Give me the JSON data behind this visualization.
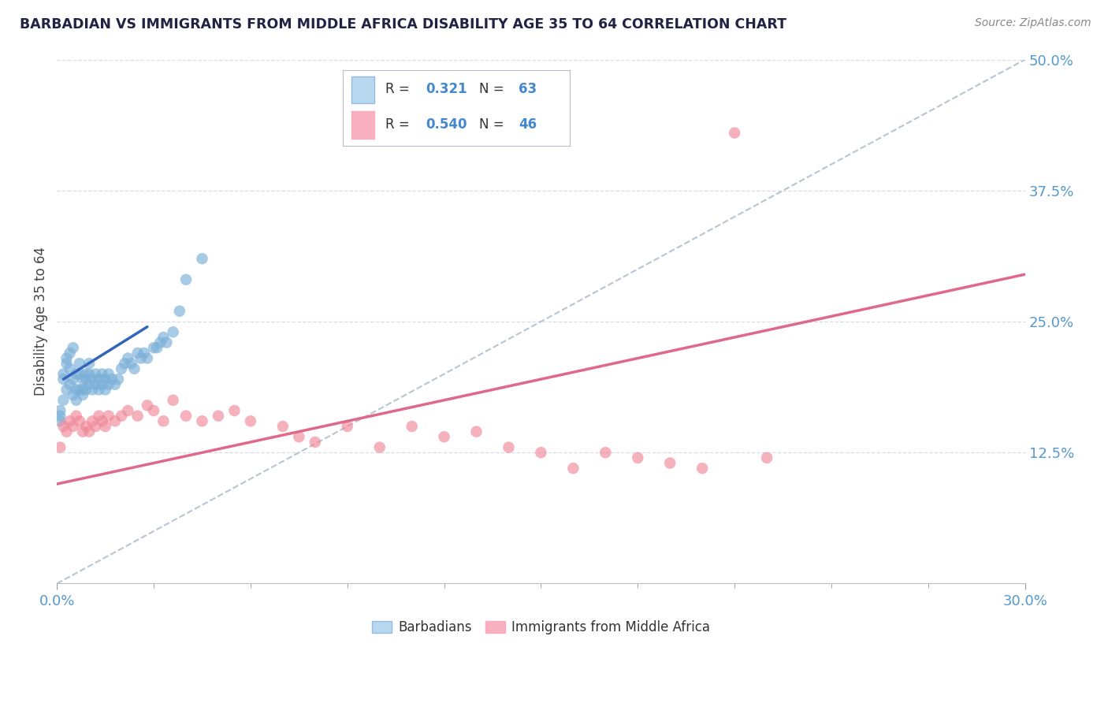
{
  "title": "BARBADIAN VS IMMIGRANTS FROM MIDDLE AFRICA DISABILITY AGE 35 TO 64 CORRELATION CHART",
  "source_text": "Source: ZipAtlas.com",
  "ylabel": "Disability Age 35 to 64",
  "xlim": [
    0.0,
    0.3
  ],
  "ylim": [
    0.0,
    0.5
  ],
  "yticks": [
    0.125,
    0.25,
    0.375,
    0.5
  ],
  "yticklabels": [
    "12.5%",
    "25.0%",
    "37.5%",
    "50.0%"
  ],
  "barbadian_R": 0.321,
  "barbadian_N": 63,
  "immigrant_R": 0.54,
  "immigrant_N": 46,
  "blue_dot_color": "#7ab0d8",
  "pink_dot_color": "#f08898",
  "legend_box_blue": "#b8d8f0",
  "legend_box_pink": "#f8b0c0",
  "tick_color": "#5599cc",
  "grid_color": "#d8dde8",
  "barb_x": [
    0.001,
    0.001,
    0.001,
    0.002,
    0.002,
    0.002,
    0.003,
    0.003,
    0.003,
    0.004,
    0.004,
    0.004,
    0.005,
    0.005,
    0.005,
    0.006,
    0.006,
    0.006,
    0.007,
    0.007,
    0.007,
    0.008,
    0.008,
    0.008,
    0.009,
    0.009,
    0.009,
    0.01,
    0.01,
    0.01,
    0.011,
    0.011,
    0.012,
    0.012,
    0.013,
    0.013,
    0.014,
    0.014,
    0.015,
    0.015,
    0.016,
    0.016,
    0.017,
    0.018,
    0.019,
    0.02,
    0.021,
    0.022,
    0.023,
    0.024,
    0.025,
    0.026,
    0.027,
    0.028,
    0.03,
    0.031,
    0.032,
    0.033,
    0.034,
    0.036,
    0.038,
    0.04,
    0.045
  ],
  "barb_y": [
    0.165,
    0.16,
    0.155,
    0.2,
    0.195,
    0.175,
    0.215,
    0.21,
    0.185,
    0.22,
    0.205,
    0.19,
    0.225,
    0.195,
    0.18,
    0.2,
    0.185,
    0.175,
    0.21,
    0.2,
    0.185,
    0.195,
    0.185,
    0.18,
    0.2,
    0.195,
    0.185,
    0.21,
    0.2,
    0.19,
    0.195,
    0.185,
    0.2,
    0.19,
    0.195,
    0.185,
    0.2,
    0.19,
    0.195,
    0.185,
    0.2,
    0.19,
    0.195,
    0.19,
    0.195,
    0.205,
    0.21,
    0.215,
    0.21,
    0.205,
    0.22,
    0.215,
    0.22,
    0.215,
    0.225,
    0.225,
    0.23,
    0.235,
    0.23,
    0.24,
    0.26,
    0.29,
    0.31
  ],
  "imm_x": [
    0.001,
    0.002,
    0.003,
    0.004,
    0.005,
    0.006,
    0.007,
    0.008,
    0.009,
    0.01,
    0.011,
    0.012,
    0.013,
    0.014,
    0.015,
    0.016,
    0.018,
    0.02,
    0.022,
    0.025,
    0.028,
    0.03,
    0.033,
    0.036,
    0.04,
    0.045,
    0.05,
    0.055,
    0.06,
    0.07,
    0.075,
    0.08,
    0.09,
    0.1,
    0.11,
    0.12,
    0.13,
    0.14,
    0.15,
    0.16,
    0.17,
    0.18,
    0.19,
    0.2,
    0.21,
    0.22
  ],
  "imm_y": [
    0.13,
    0.15,
    0.145,
    0.155,
    0.15,
    0.16,
    0.155,
    0.145,
    0.15,
    0.145,
    0.155,
    0.15,
    0.16,
    0.155,
    0.15,
    0.16,
    0.155,
    0.16,
    0.165,
    0.16,
    0.17,
    0.165,
    0.155,
    0.175,
    0.16,
    0.155,
    0.16,
    0.165,
    0.155,
    0.15,
    0.14,
    0.135,
    0.15,
    0.13,
    0.15,
    0.14,
    0.145,
    0.13,
    0.125,
    0.11,
    0.125,
    0.12,
    0.115,
    0.11,
    0.43,
    0.12
  ],
  "blue_line_x1": 0.002,
  "blue_line_y1": 0.195,
  "blue_line_x2": 0.028,
  "blue_line_y2": 0.245,
  "dashed_line_x1": 0.0,
  "dashed_line_y1": 0.0,
  "dashed_line_x2": 0.3,
  "dashed_line_y2": 0.5,
  "pink_line_x1": 0.0,
  "pink_line_y1": 0.095,
  "pink_line_x2": 0.3,
  "pink_line_y2": 0.295
}
